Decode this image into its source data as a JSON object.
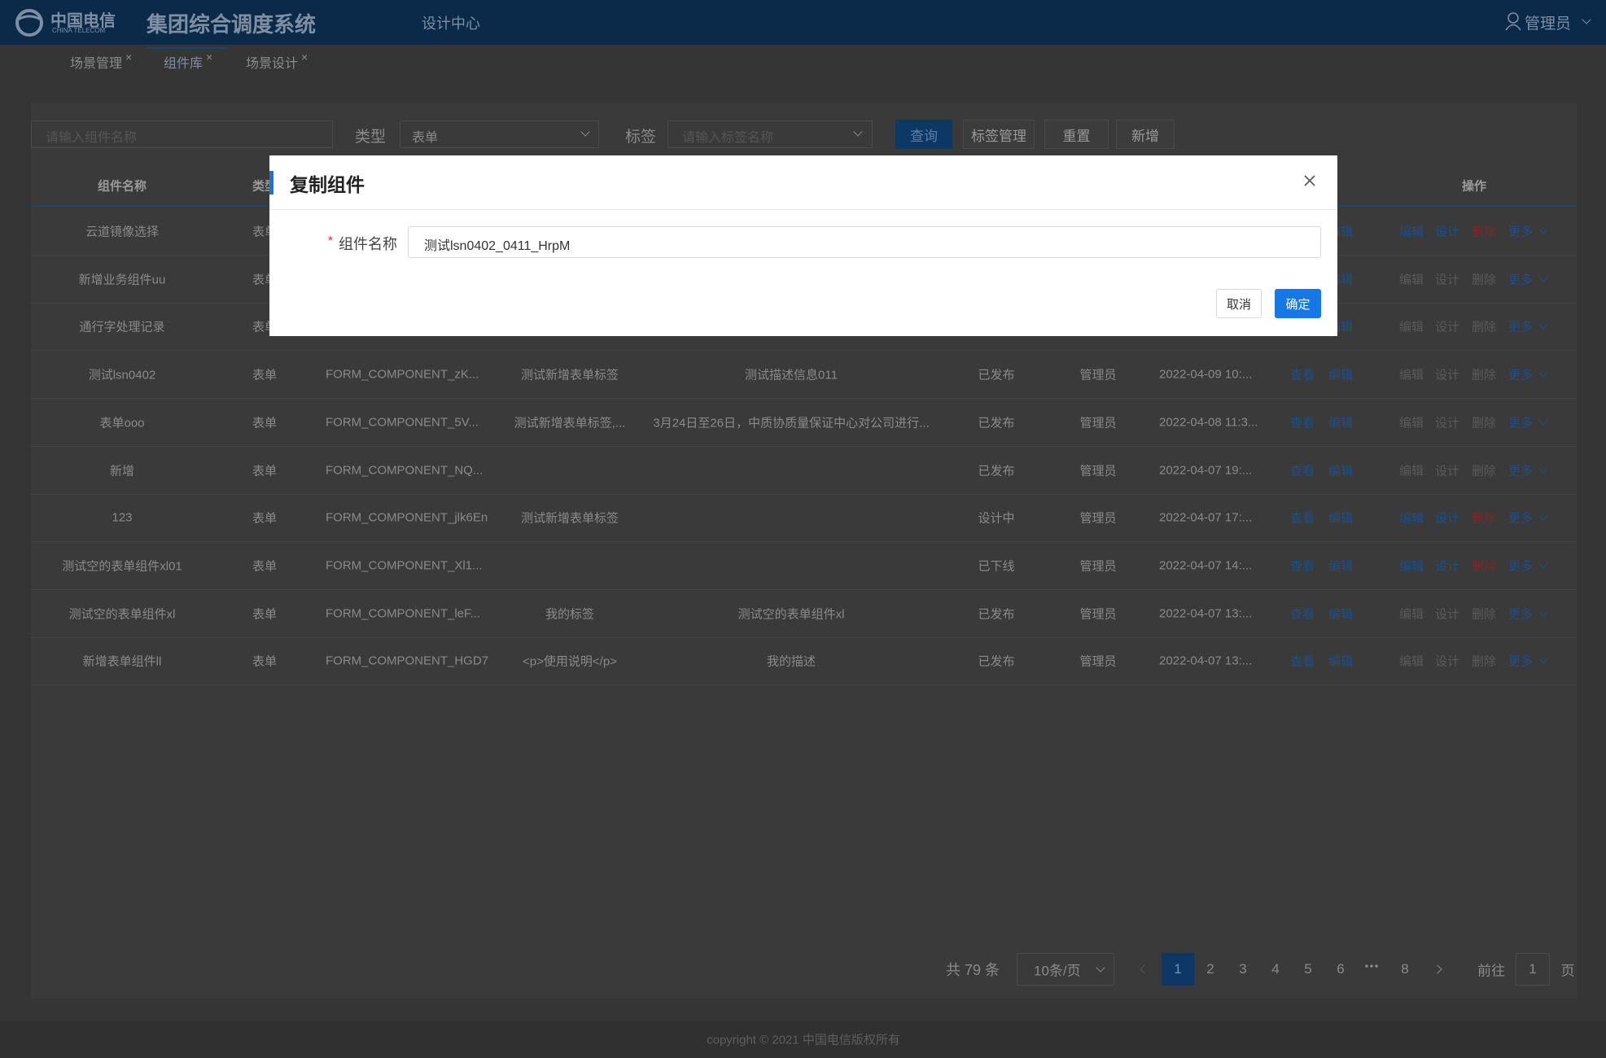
{
  "header": {
    "logo_cn": "中国电信",
    "logo_en": "CHINA TELECOM",
    "title": "集团综合调度系统",
    "nav": "设计中心",
    "user": "管理员"
  },
  "tabs": [
    {
      "label": "场景管理",
      "active": false
    },
    {
      "label": "组件库",
      "active": true
    },
    {
      "label": "场景设计",
      "active": false
    }
  ],
  "filters": {
    "name_placeholder": "请输入组件名称",
    "type_label": "类型",
    "type_value": "表单",
    "tag_label": "标签",
    "tag_placeholder": "请输入标签名称",
    "buttons": [
      "查询",
      "标签管理",
      "重置",
      "新增"
    ]
  },
  "table": {
    "headers": {
      "name": "组件名称",
      "type": "类型",
      "ops": "操作"
    },
    "row_links": [
      "查看",
      "编辑"
    ],
    "ops": [
      "编辑",
      "设计",
      "删除",
      "更多"
    ],
    "rows": [
      {
        "name": "云道镜像选择",
        "type": "表单",
        "ops_enabled": true
      },
      {
        "name": "新增业务组件uu",
        "type": "表单",
        "ops_enabled": false
      },
      {
        "name": "通行字处理记录",
        "type": "表单",
        "ops_enabled": false
      },
      {
        "name": "测试lsn0402",
        "type": "表单",
        "code": "FORM_COMPONENT_zK...",
        "tag": "测试新增表单标签",
        "desc": "测试描述信息011",
        "status": "已发布",
        "creator": "管理员",
        "time": "2022-04-09 10:...",
        "ops_enabled": false
      },
      {
        "name": "表单ooo",
        "type": "表单",
        "code": "FORM_COMPONENT_5V...",
        "tag": "测试新增表单标签,...",
        "desc": "3月24日至26日，中质协质量保证中心对公司进行...",
        "status": "已发布",
        "creator": "管理员",
        "time": "2022-04-08 11:3...",
        "ops_enabled": false
      },
      {
        "name": "新增",
        "type": "表单",
        "code": "FORM_COMPONENT_NQ...",
        "status": "已发布",
        "creator": "管理员",
        "time": "2022-04-07 19:...",
        "ops_enabled": false
      },
      {
        "name": "123",
        "type": "表单",
        "code": "FORM_COMPONENT_jlk6En",
        "tag": "测试新增表单标签",
        "status": "设计中",
        "creator": "管理员",
        "time": "2022-04-07 17:...",
        "ops_enabled": true
      },
      {
        "name": "测试空的表单组件xl01",
        "type": "表单",
        "code": "FORM_COMPONENT_Xl1...",
        "status": "已下线",
        "creator": "管理员",
        "time": "2022-04-07 14:...",
        "ops_enabled": true
      },
      {
        "name": "测试空的表单组件xl",
        "type": "表单",
        "code": "FORM_COMPONENT_leF...",
        "tag": "我的标签",
        "desc": "测试空的表单组件xl",
        "status": "已发布",
        "creator": "管理员",
        "time": "2022-04-07 13:...",
        "ops_enabled": false
      },
      {
        "name": "新增表单组件ll",
        "type": "表单",
        "code": "FORM_COMPONENT_HGD7",
        "tag": "<p>使用说明</p>",
        "desc": "我的描述",
        "status": "已发布",
        "creator": "管理员",
        "time": "2022-04-07 13:...",
        "ops_enabled": false
      }
    ]
  },
  "pagination": {
    "total": "共 79 条",
    "page_size": "10条/页",
    "pages": [
      "1",
      "2",
      "3",
      "4",
      "5",
      "6"
    ],
    "last_page": "8",
    "current": "1",
    "goto_label": "前往",
    "goto_value": "1",
    "goto_suffix": "页"
  },
  "footer": "copyright © 2021 中国电信版权所有",
  "dialog": {
    "title": "复制组件",
    "required_mark": "*",
    "field_label": "组件名称",
    "field_value": "测试lsn0402_0411_HrpM",
    "cancel": "取消",
    "confirm": "确定"
  }
}
